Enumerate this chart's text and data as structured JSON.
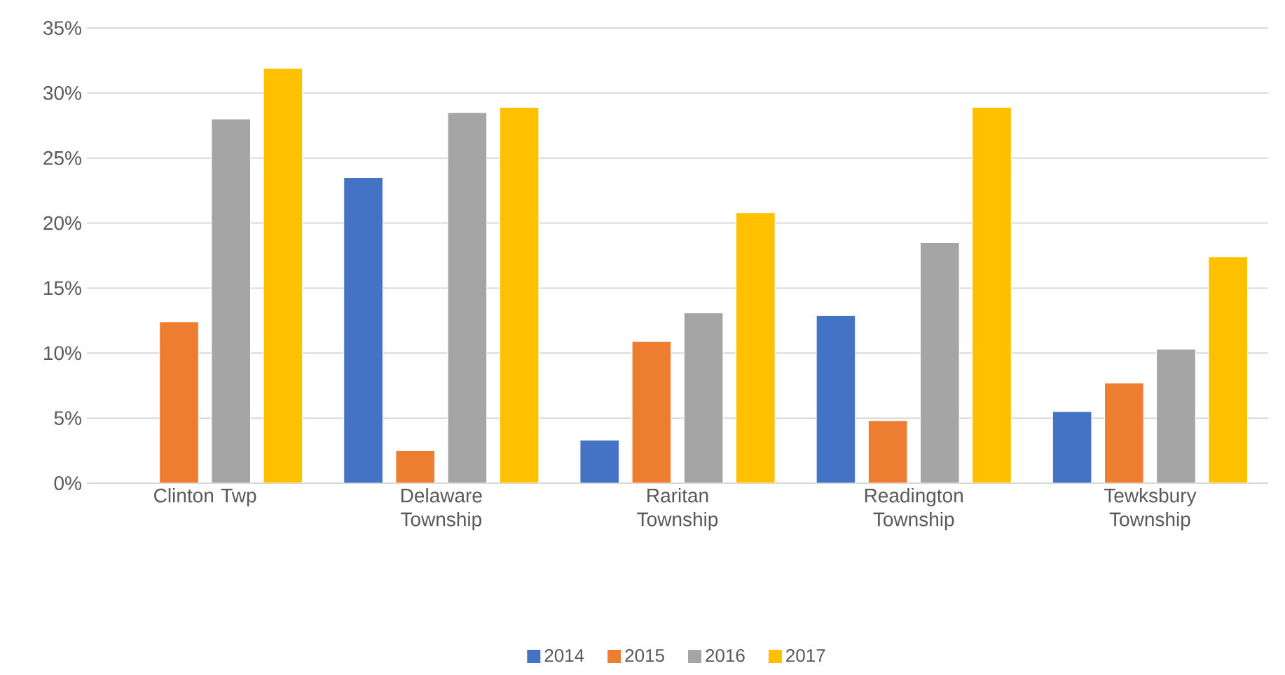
{
  "chart_data": {
    "type": "bar",
    "categories": [
      "Clinton Twp",
      "Delaware Township",
      "Raritan Township",
      "Readington Township",
      "Tewksbury Township"
    ],
    "series": [
      {
        "name": "2014",
        "color": "#4472c4",
        "values": [
          null,
          23.5,
          3.3,
          12.9,
          5.5
        ]
      },
      {
        "name": "2015",
        "color": "#ed7d31",
        "values": [
          12.4,
          2.5,
          10.9,
          4.8,
          7.7
        ]
      },
      {
        "name": "2016",
        "color": "#a5a5a5",
        "values": [
          28.0,
          28.5,
          13.1,
          18.5,
          10.3
        ]
      },
      {
        "name": "2017",
        "color": "#ffc000",
        "values": [
          31.9,
          28.9,
          20.8,
          28.9,
          17.4
        ]
      }
    ],
    "ylim": [
      0,
      35
    ],
    "yticks": [
      {
        "value": 0,
        "label": "0%"
      },
      {
        "value": 5,
        "label": "5%"
      },
      {
        "value": 10,
        "label": "10%"
      },
      {
        "value": 15,
        "label": "15%"
      },
      {
        "value": 20,
        "label": "20%"
      },
      {
        "value": 25,
        "label": "25%"
      },
      {
        "value": 30,
        "label": "30%"
      },
      {
        "value": 35,
        "label": "35%"
      }
    ],
    "grid": "y",
    "legend": "bottom"
  }
}
